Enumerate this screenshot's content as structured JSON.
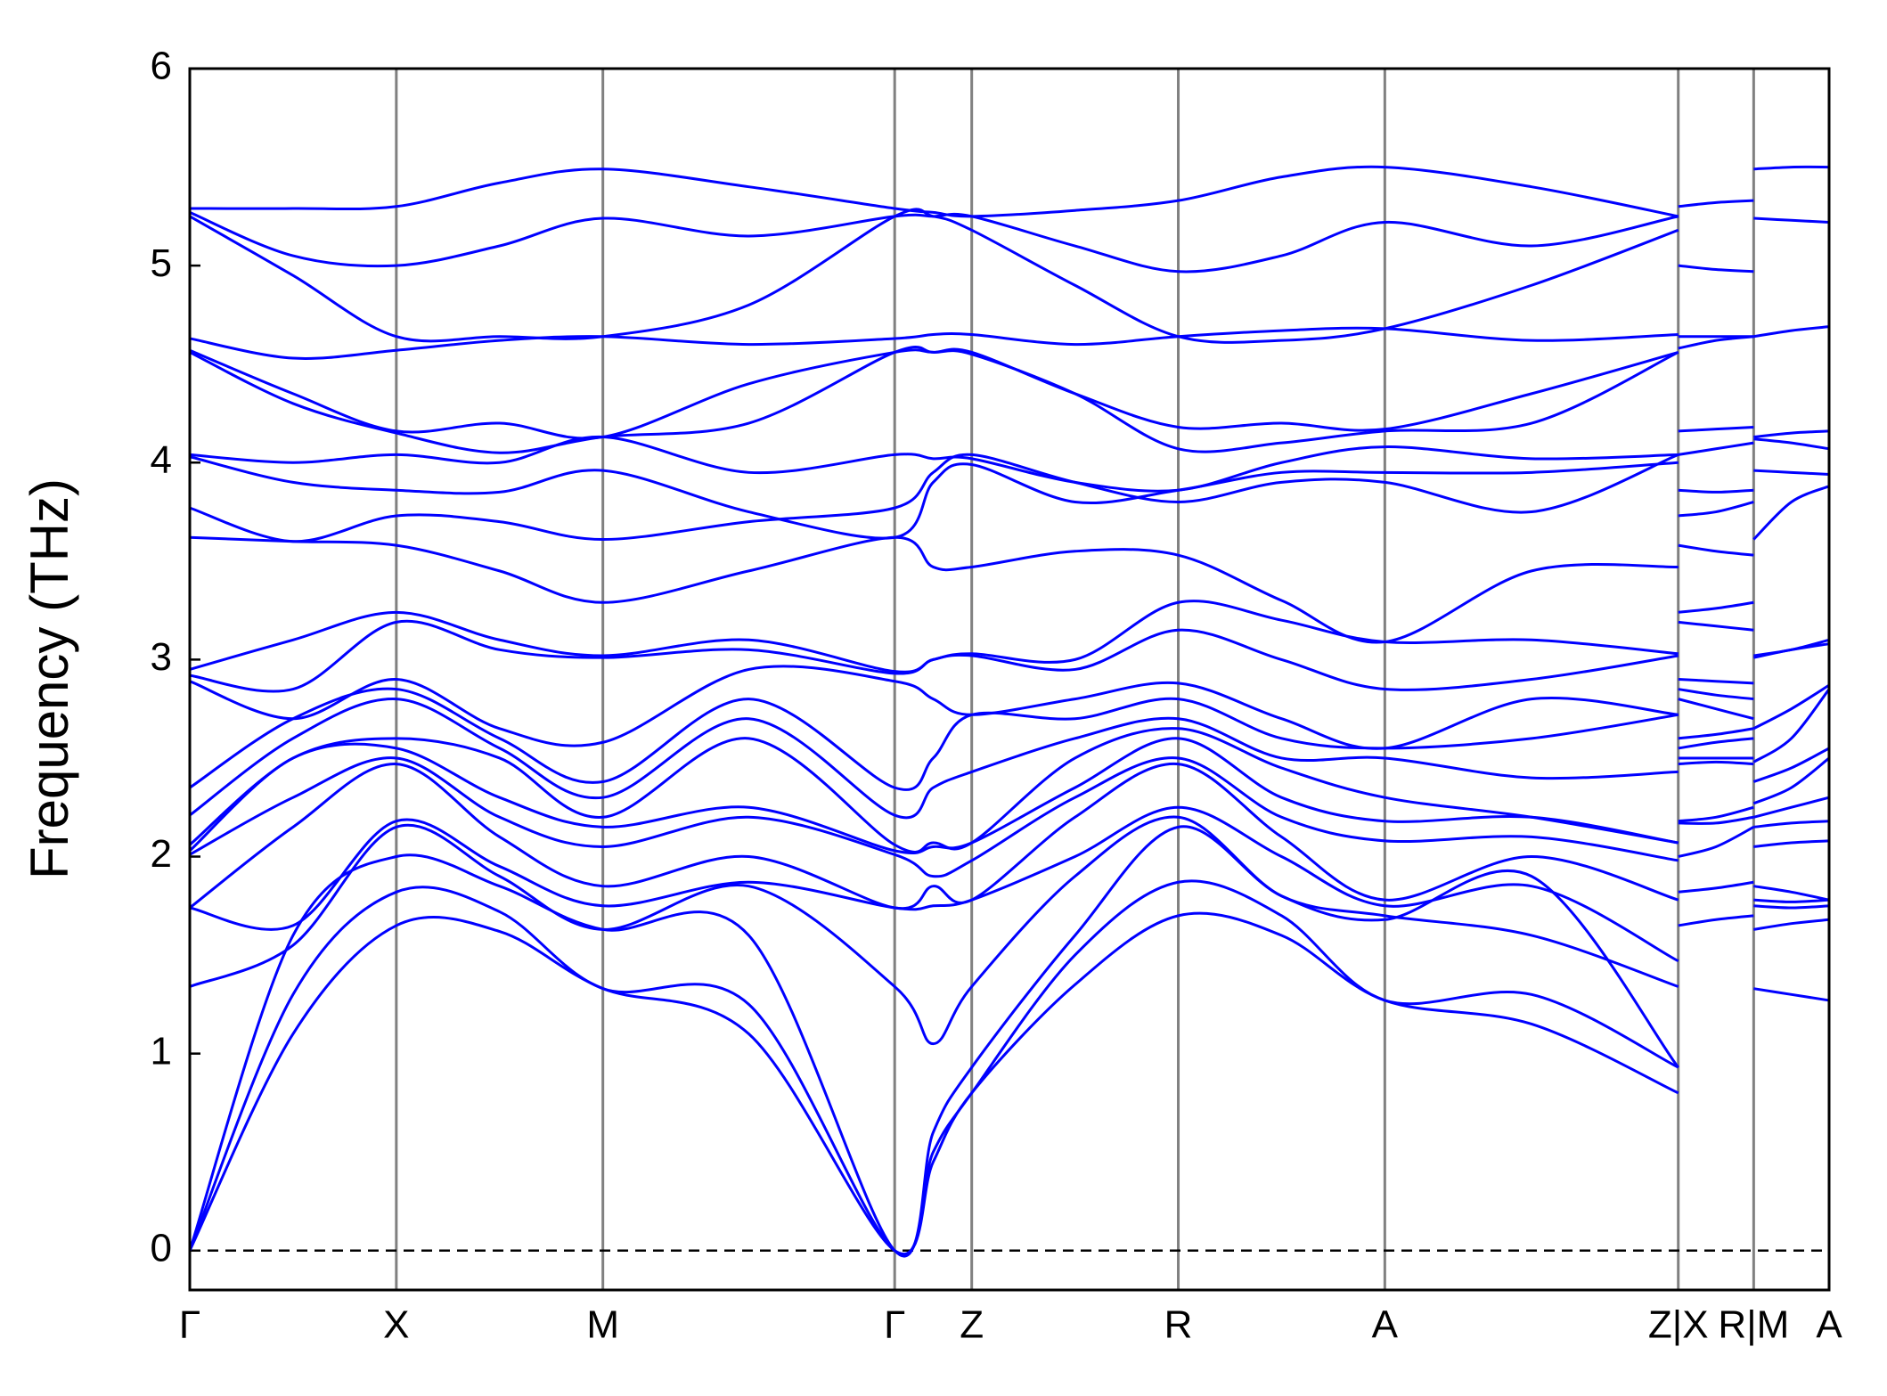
{
  "chart_data": {
    "type": "line",
    "y_label": "Frequency (THz)",
    "color": "#0000ff",
    "zero_line": true,
    "xlim": [
      0,
      1
    ],
    "ylim": [
      -0.2,
      6
    ],
    "yticks": [
      0,
      1,
      2,
      3,
      4,
      5,
      6
    ],
    "xticks": [
      {
        "value": 0,
        "label": "Γ"
      },
      {
        "value": 0.126,
        "label": "X"
      },
      {
        "value": 0.252,
        "label": "M"
      },
      {
        "value": 0.43,
        "label": "Γ"
      },
      {
        "value": 0.477,
        "label": "Z"
      },
      {
        "value": 0.603,
        "label": "R"
      },
      {
        "value": 0.729,
        "label": "A"
      },
      {
        "value": 0.908,
        "label": "Z|X"
      },
      {
        "value": 0.954,
        "label": "R|M"
      },
      {
        "value": 1,
        "label": "A"
      }
    ],
    "x": [
      0,
      0.063,
      0.126,
      0.189,
      0.252,
      0.341,
      0.43,
      0.4535,
      0.477,
      0.54,
      0.603,
      0.666,
      0.729,
      0.8185,
      0.908,
      0.908,
      0.908,
      0.931,
      0.954,
      0.954,
      0.954,
      0.977,
      1
    ],
    "series": [
      {
        "values": [
          0,
          1.1,
          1.65,
          1.62,
          1.33,
          1.1,
          0,
          0.45,
          0.8,
          1.35,
          1.7,
          1.6,
          1.27,
          1.15,
          0.8,
          null,
          1.65,
          1.68,
          1.7,
          null,
          1.33,
          1.3,
          1.27
        ]
      },
      {
        "values": [
          0,
          1.3,
          1.82,
          1.72,
          1.33,
          1.25,
          0,
          0.5,
          0.8,
          1.5,
          1.87,
          1.7,
          1.27,
          1.3,
          0.93,
          null,
          1.82,
          1.84,
          1.87,
          null,
          1.63,
          1.66,
          1.68
        ]
      },
      {
        "values": [
          0,
          1.6,
          2.0,
          1.85,
          1.63,
          1.6,
          0,
          0.6,
          0.93,
          1.6,
          2.15,
          1.8,
          1.68,
          1.9,
          0.93,
          null,
          2.0,
          2.05,
          2.15,
          null,
          1.75,
          1.74,
          1.75
        ]
      },
      {
        "values": [
          1.34,
          1.55,
          2.15,
          1.9,
          1.63,
          1.85,
          1.34,
          1.05,
          1.34,
          1.9,
          2.2,
          1.8,
          1.7,
          1.6,
          1.34,
          null,
          2.17,
          2.17,
          2.2,
          null,
          1.78,
          1.77,
          1.78
        ]
      },
      {
        "values": [
          1.74,
          1.65,
          2.18,
          1.95,
          1.75,
          1.87,
          1.74,
          1.75,
          1.78,
          2.0,
          2.25,
          2.0,
          1.75,
          1.85,
          1.47,
          null,
          2.18,
          2.2,
          2.25,
          null,
          1.85,
          1.82,
          1.78
        ]
      },
      {
        "values": [
          1.74,
          2.15,
          2.47,
          2.1,
          1.85,
          2.0,
          1.74,
          1.85,
          1.78,
          2.2,
          2.47,
          2.1,
          1.78,
          2.0,
          1.78,
          null,
          2.47,
          2.48,
          2.47,
          null,
          2.05,
          2.07,
          2.08
        ]
      },
      {
        "values": [
          2.01,
          2.3,
          2.5,
          2.2,
          2.05,
          2.2,
          2.01,
          1.9,
          1.98,
          2.3,
          2.5,
          2.2,
          2.08,
          2.1,
          1.98,
          null,
          2.5,
          2.5,
          2.5,
          null,
          2.15,
          2.17,
          2.18
        ]
      },
      {
        "values": [
          2.03,
          2.5,
          2.55,
          2.3,
          2.15,
          2.25,
          2.03,
          2.05,
          2.07,
          2.35,
          2.6,
          2.3,
          2.18,
          2.2,
          2.07,
          null,
          2.55,
          2.58,
          2.6,
          null,
          2.2,
          2.25,
          2.3
        ]
      },
      {
        "values": [
          2.06,
          2.5,
          2.6,
          2.5,
          2.2,
          2.6,
          2.06,
          2.07,
          2.07,
          2.5,
          2.65,
          2.45,
          2.3,
          2.2,
          2.07,
          null,
          2.6,
          2.62,
          2.65,
          null,
          2.27,
          2.35,
          2.5
        ]
      },
      {
        "values": [
          2.21,
          2.6,
          2.8,
          2.55,
          2.3,
          2.7,
          2.21,
          2.35,
          2.43,
          2.6,
          2.7,
          2.5,
          2.5,
          2.4,
          2.43,
          null,
          2.8,
          2.75,
          2.7,
          null,
          2.38,
          2.45,
          2.55
        ]
      },
      {
        "values": [
          2.35,
          2.7,
          2.85,
          2.6,
          2.38,
          2.8,
          2.35,
          2.5,
          2.72,
          2.7,
          2.8,
          2.6,
          2.55,
          2.6,
          2.72,
          null,
          2.85,
          2.82,
          2.8,
          null,
          2.48,
          2.6,
          2.85
        ]
      },
      {
        "values": [
          2.89,
          2.7,
          2.9,
          2.65,
          2.58,
          2.95,
          2.89,
          2.8,
          2.72,
          2.8,
          2.88,
          2.7,
          2.55,
          2.8,
          2.72,
          null,
          2.9,
          2.89,
          2.88,
          null,
          2.65,
          2.75,
          2.87
        ]
      },
      {
        "values": [
          2.92,
          2.85,
          3.19,
          3.05,
          3.01,
          3.05,
          2.93,
          3.0,
          3.02,
          2.95,
          3.15,
          3.0,
          2.85,
          2.9,
          3.02,
          null,
          3.19,
          3.17,
          3.15,
          null,
          3.01,
          3.05,
          3.08
        ]
      },
      {
        "values": [
          2.95,
          3.1,
          3.24,
          3.1,
          3.02,
          3.1,
          2.94,
          3.0,
          3.03,
          3.0,
          3.29,
          3.2,
          3.09,
          3.1,
          3.03,
          null,
          3.24,
          3.26,
          3.29,
          null,
          3.02,
          3.05,
          3.1
        ]
      },
      {
        "values": [
          3.62,
          3.6,
          3.58,
          3.45,
          3.29,
          3.45,
          3.62,
          3.47,
          3.47,
          3.55,
          3.53,
          3.3,
          3.09,
          3.45,
          3.47,
          null,
          3.58,
          3.55,
          3.53,
          null,
          3.61,
          3.8,
          3.88
        ]
      },
      {
        "values": [
          3.77,
          3.6,
          3.73,
          3.7,
          3.61,
          3.7,
          3.77,
          3.95,
          4.04,
          3.9,
          3.8,
          3.9,
          3.9,
          3.75,
          4.04,
          null,
          3.73,
          3.75,
          3.8,
          null,
          3.96,
          3.95,
          3.94
        ]
      },
      {
        "values": [
          4.03,
          3.9,
          3.86,
          3.85,
          3.96,
          3.75,
          3.62,
          3.9,
          3.99,
          3.8,
          3.86,
          3.95,
          3.95,
          3.95,
          4.0,
          null,
          3.86,
          3.85,
          3.86,
          null,
          4.12,
          4.1,
          4.07
        ]
      },
      {
        "values": [
          4.04,
          4.0,
          4.04,
          4.0,
          4.13,
          3.95,
          4.04,
          4.02,
          4.02,
          3.9,
          3.86,
          4.0,
          4.08,
          4.02,
          4.04,
          null,
          4.04,
          4.07,
          4.1,
          null,
          4.13,
          4.15,
          4.16
        ]
      },
      {
        "values": [
          4.56,
          4.3,
          4.15,
          4.05,
          4.13,
          4.2,
          4.56,
          4.56,
          4.55,
          4.35,
          4.07,
          4.1,
          4.16,
          4.2,
          4.56,
          null,
          4.16,
          4.17,
          4.18,
          null,
          4.64,
          4.67,
          4.69
        ]
      },
      {
        "values": [
          4.57,
          4.35,
          4.16,
          4.2,
          4.13,
          4.4,
          4.56,
          4.56,
          4.56,
          4.35,
          4.18,
          4.2,
          4.17,
          4.35,
          4.56,
          null,
          4.58,
          4.62,
          4.64,
          null,
          5.24,
          5.23,
          5.22
        ]
      },
      {
        "values": [
          4.63,
          4.53,
          4.57,
          4.62,
          4.64,
          4.6,
          4.63,
          4.65,
          4.65,
          4.6,
          4.64,
          4.67,
          4.68,
          4.62,
          4.65,
          null,
          4.64,
          4.64,
          4.64,
          null,
          5.49,
          5.5,
          5.5
        ]
      },
      {
        "values": [
          5.25,
          4.95,
          4.64,
          4.64,
          4.64,
          4.8,
          5.25,
          5.25,
          5.18,
          4.9,
          4.64,
          4.62,
          4.68,
          4.9,
          5.18,
          null,
          5.0,
          4.98,
          4.97,
          null,
          null,
          null,
          null
        ]
      },
      {
        "values": [
          5.27,
          5.05,
          5.0,
          5.1,
          5.24,
          5.15,
          5.25,
          5.25,
          5.25,
          5.1,
          4.97,
          5.05,
          5.22,
          5.1,
          5.25,
          null,
          5.3,
          5.32,
          5.33,
          null,
          null,
          null,
          null
        ]
      },
      {
        "values": [
          5.29,
          5.29,
          5.3,
          5.42,
          5.49,
          5.4,
          5.29,
          5.27,
          5.25,
          5.28,
          5.33,
          5.45,
          5.5,
          5.4,
          5.25,
          null,
          null,
          null,
          null,
          null,
          null,
          null,
          null
        ]
      }
    ]
  }
}
